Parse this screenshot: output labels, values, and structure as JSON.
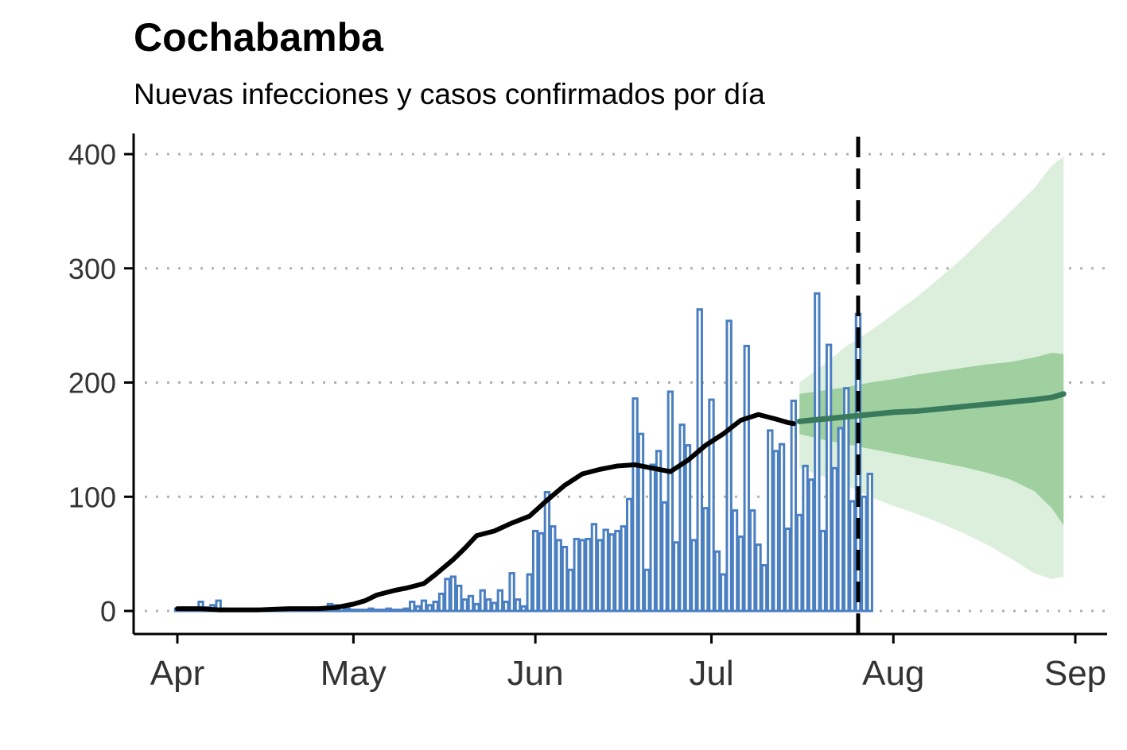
{
  "chart_data": {
    "type": "bar",
    "title": "Cochabamba",
    "subtitle": "Nuevas infecciones y casos confirmados por día",
    "xlabel": "",
    "ylabel": "",
    "ylim": [
      0,
      420
    ],
    "yticks": [
      0,
      100,
      200,
      300,
      400
    ],
    "xticks": [
      {
        "label": "Apr",
        "date": "2020-04-01"
      },
      {
        "label": "May",
        "date": "2020-05-01"
      },
      {
        "label": "Jun",
        "date": "2020-06-01"
      },
      {
        "label": "Jul",
        "date": "2020-07-01"
      },
      {
        "label": "Aug",
        "date": "2020-08-01"
      },
      {
        "label": "Sep",
        "date": "2020-09-01"
      }
    ],
    "xlim": [
      "2020-03-24",
      "2020-09-06"
    ],
    "grid": "horizontal dotted",
    "forecast_start_date": "2020-07-26",
    "bars_start_date": "2020-04-01",
    "bar_color": "#4a7fc1",
    "confirmed_cases": [
      2,
      2,
      2,
      2,
      8,
      3,
      5,
      9,
      2,
      1,
      1,
      1,
      1,
      1,
      1,
      1,
      1,
      1,
      1,
      1,
      1,
      1,
      1,
      1,
      2,
      2,
      6,
      5,
      3,
      2,
      1,
      1,
      1,
      2,
      1,
      1,
      2,
      1,
      1,
      2,
      8,
      4,
      9,
      5,
      8,
      15,
      28,
      30,
      22,
      10,
      13,
      6,
      18,
      10,
      7,
      18,
      8,
      33,
      10,
      4,
      32,
      70,
      68,
      104,
      74,
      62,
      56,
      36,
      63,
      62,
      63,
      76,
      62,
      71,
      67,
      70,
      74,
      98,
      186,
      155,
      36,
      128,
      140,
      95,
      192,
      60,
      163,
      145,
      62,
      264,
      90,
      185,
      52,
      32,
      254,
      88,
      65,
      232,
      88,
      58,
      40,
      158,
      140,
      146,
      72,
      184,
      84,
      127,
      115,
      278,
      70,
      233,
      125,
      160,
      195,
      96,
      260,
      100,
      120
    ],
    "infections_estimate": [
      [
        "2020-04-01",
        2
      ],
      [
        "2020-04-05",
        2
      ],
      [
        "2020-04-08",
        1
      ],
      [
        "2020-04-15",
        1
      ],
      [
        "2020-04-20",
        2
      ],
      [
        "2020-04-25",
        2
      ],
      [
        "2020-04-28",
        3
      ],
      [
        "2020-05-01",
        6
      ],
      [
        "2020-05-03",
        9
      ],
      [
        "2020-05-05",
        14
      ],
      [
        "2020-05-08",
        18
      ],
      [
        "2020-05-10",
        20
      ],
      [
        "2020-05-13",
        24
      ],
      [
        "2020-05-15",
        32
      ],
      [
        "2020-05-18",
        45
      ],
      [
        "2020-05-20",
        55
      ],
      [
        "2020-05-22",
        66
      ],
      [
        "2020-05-25",
        70
      ],
      [
        "2020-05-28",
        77
      ],
      [
        "2020-05-31",
        83
      ],
      [
        "2020-06-03",
        97
      ],
      [
        "2020-06-06",
        110
      ],
      [
        "2020-06-09",
        120
      ],
      [
        "2020-06-12",
        124
      ],
      [
        "2020-06-15",
        127
      ],
      [
        "2020-06-18",
        128
      ],
      [
        "2020-06-21",
        125
      ],
      [
        "2020-06-24",
        122
      ],
      [
        "2020-06-27",
        132
      ],
      [
        "2020-06-30",
        145
      ],
      [
        "2020-07-03",
        155
      ],
      [
        "2020-07-06",
        167
      ],
      [
        "2020-07-09",
        172
      ],
      [
        "2020-07-12",
        168
      ],
      [
        "2020-07-14",
        165
      ],
      [
        "2020-07-15",
        164
      ]
    ],
    "infections_color": "#000000",
    "forecast": {
      "color_line": "#3a7a5c",
      "color_band_inner": "#a0d0a0",
      "color_band_outer": "#dcefdc",
      "median": [
        [
          "2020-07-16",
          166
        ],
        [
          "2020-07-20",
          168
        ],
        [
          "2020-07-24",
          170
        ],
        [
          "2020-07-28",
          172
        ],
        [
          "2020-08-01",
          174
        ],
        [
          "2020-08-05",
          175
        ],
        [
          "2020-08-09",
          177
        ],
        [
          "2020-08-13",
          179
        ],
        [
          "2020-08-17",
          181
        ],
        [
          "2020-08-21",
          183
        ],
        [
          "2020-08-25",
          185
        ],
        [
          "2020-08-28",
          187
        ],
        [
          "2020-08-30",
          190
        ]
      ],
      "inner_band": [
        [
          "2020-07-16",
          155,
          190
        ],
        [
          "2020-07-20",
          150,
          193
        ],
        [
          "2020-07-24",
          146,
          196
        ],
        [
          "2020-07-28",
          142,
          200
        ],
        [
          "2020-08-01",
          138,
          203
        ],
        [
          "2020-08-05",
          134,
          207
        ],
        [
          "2020-08-09",
          130,
          210
        ],
        [
          "2020-08-13",
          126,
          213
        ],
        [
          "2020-08-17",
          121,
          216
        ],
        [
          "2020-08-21",
          115,
          218
        ],
        [
          "2020-08-25",
          105,
          222
        ],
        [
          "2020-08-28",
          90,
          226
        ],
        [
          "2020-08-30",
          75,
          225
        ]
      ],
      "outer_band": [
        [
          "2020-07-16",
          125,
          200
        ],
        [
          "2020-07-20",
          118,
          215
        ],
        [
          "2020-07-24",
          110,
          232
        ],
        [
          "2020-07-28",
          100,
          245
        ],
        [
          "2020-08-01",
          92,
          260
        ],
        [
          "2020-08-05",
          85,
          275
        ],
        [
          "2020-08-09",
          77,
          292
        ],
        [
          "2020-08-13",
          68,
          310
        ],
        [
          "2020-08-17",
          58,
          330
        ],
        [
          "2020-08-21",
          46,
          350
        ],
        [
          "2020-08-25",
          33,
          370
        ],
        [
          "2020-08-28",
          28,
          390
        ],
        [
          "2020-08-30",
          30,
          398
        ]
      ]
    }
  }
}
